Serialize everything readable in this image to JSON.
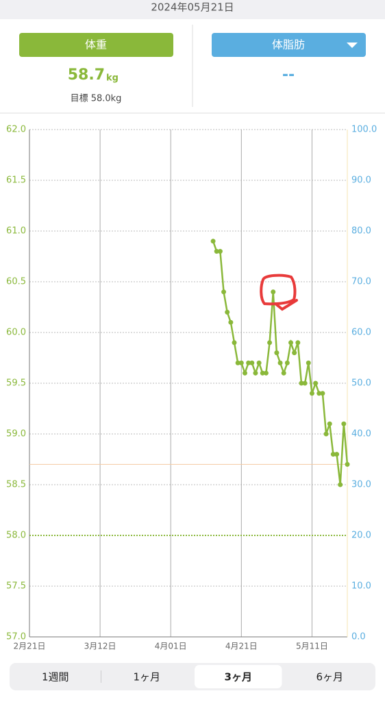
{
  "header": {
    "date": "2024年05月21日",
    "weight_button": "体重",
    "fat_button": "体脂肪",
    "weight": 58.7,
    "weight_unit": "kg",
    "goal": "目標 58.0kg",
    "fat_value": "--"
  },
  "tabs": [
    "1週間",
    "1ヶ月",
    "3ヶ月",
    "6ヶ月"
  ],
  "chart_data": {
    "type": "line",
    "x": [
      "4月13日",
      "4月14日",
      "4月15日",
      "4月16日",
      "4月17日",
      "4月18日",
      "4月19日",
      "4月20日",
      "4月21日",
      "4月22日",
      "4月23日",
      "4月24日",
      "4月25日",
      "4月26日",
      "4月27日",
      "4月28日",
      "4月29日",
      "4月30日",
      "5月01日",
      "5月02日",
      "5月03日",
      "5月04日",
      "5月05日",
      "5月06日",
      "5月07日",
      "5月08日",
      "5月09日",
      "5月10日",
      "5月11日",
      "5月12日",
      "5月13日",
      "5月14日",
      "5月15日",
      "5月16日",
      "5月17日",
      "5月18日",
      "5月19日",
      "5月20日",
      "5月21日"
    ],
    "series": [
      {
        "name": "体重",
        "color": "#8ab83a",
        "values": [
          60.9,
          60.8,
          60.8,
          60.4,
          60.2,
          60.1,
          59.9,
          59.7,
          59.7,
          59.6,
          59.7,
          59.7,
          59.6,
          59.7,
          59.6,
          59.6,
          59.9,
          60.4,
          59.8,
          59.7,
          59.6,
          59.7,
          59.9,
          59.8,
          59.9,
          59.5,
          59.5,
          59.7,
          59.4,
          59.5,
          59.4,
          59.4,
          59.0,
          59.1,
          58.8,
          58.8,
          58.5,
          59.1,
          58.7
        ]
      }
    ],
    "xlim": [
      "2月21日",
      "5月21日"
    ],
    "xticks": [
      "2月21日",
      "3月12日",
      "4月01日",
      "4月21日",
      "5月11日"
    ],
    "ylim": [
      57,
      62
    ],
    "yticks": [
      {
        "value": 57,
        "label": "57.0"
      },
      57.5,
      {
        "value": 58,
        "label": "58.0"
      },
      58.5,
      {
        "value": 59,
        "label": "59.0"
      },
      59.5,
      {
        "value": 60,
        "label": "60.0"
      },
      60.5,
      {
        "value": 61,
        "label": "61.0"
      },
      61.5,
      {
        "value": 62,
        "label": "62.0"
      }
    ],
    "y2lim": [
      0,
      100
    ],
    "y2ticks": [
      {
        "value": 0,
        "label": "0.0"
      },
      {
        "value": 10,
        "label": "10.0"
      },
      {
        "value": 20,
        "label": "20.0"
      },
      {
        "value": 30,
        "label": "30.0"
      },
      {
        "value": 40,
        "label": "40.0"
      },
      {
        "value": 50,
        "label": "50.0"
      },
      {
        "value": 60,
        "label": "60.0"
      },
      {
        "value": 70,
        "label": "70.0"
      },
      {
        "value": 80,
        "label": "80.0"
      },
      {
        "value": 90,
        "label": "90.0"
      },
      {
        "value": 100,
        "label": "100.0"
      }
    ],
    "goal_line": 58,
    "grid": true
  }
}
